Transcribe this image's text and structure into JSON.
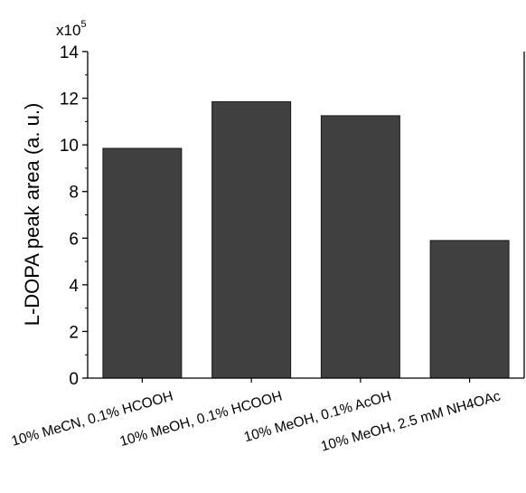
{
  "chart_data": {
    "type": "bar",
    "ylabel": "L-DOPA peak area (a. u.)",
    "y_multiplier": {
      "base": "x10",
      "exponent": "5"
    },
    "categories": [
      "10% MeCN, 0.1% HCOOH",
      "10% MeOH, 0.1% HCOOH",
      "10% MeOH, 0.1% AcOH",
      "10% MeOH, 2.5 mM NH4OAc"
    ],
    "values": [
      9.85,
      11.85,
      11.25,
      5.9
    ],
    "ylim": [
      0,
      14
    ],
    "yticks": [
      0,
      2,
      4,
      6,
      8,
      10,
      12,
      14
    ],
    "bar_color": "#404040",
    "grid": false
  }
}
